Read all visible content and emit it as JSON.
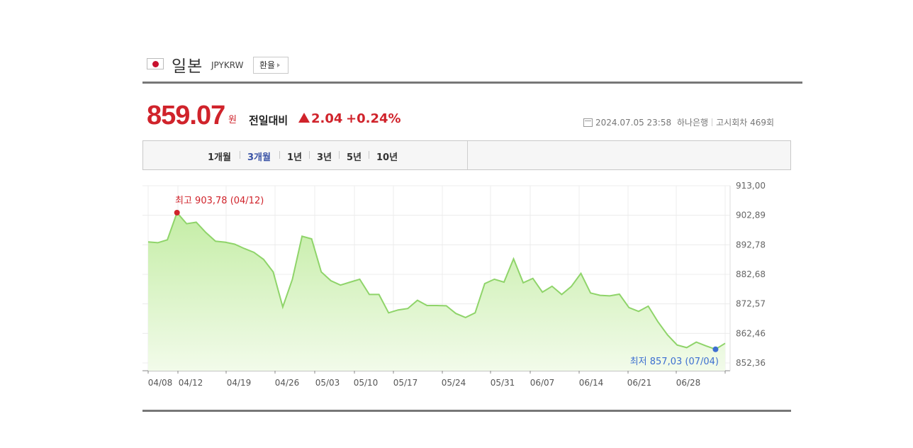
{
  "header": {
    "country": "일본",
    "code": "JPYKRW",
    "rate_button": "환율"
  },
  "quote": {
    "price": "859.07",
    "unit": "원",
    "compare_label": "전일대비",
    "change": "2.04",
    "change_pct": "+0.24%",
    "datetime": "2024.07.05 23:58",
    "bank": "하나은행",
    "notice": "고시회차 469회"
  },
  "tabs": [
    {
      "label": "1개월",
      "active": false
    },
    {
      "label": "3개월",
      "active": true
    },
    {
      "label": "1년",
      "active": false
    },
    {
      "label": "3년",
      "active": false
    },
    {
      "label": "5년",
      "active": false
    },
    {
      "label": "10년",
      "active": false
    }
  ],
  "colors": {
    "accent_red": "#d0232b",
    "active_tab": "#3b54a6",
    "line": "#8fd46a",
    "fill_top": "#c4eda5",
    "fill_bottom": "#f2fbea",
    "min_marker": "#3d6fd1"
  },
  "chart_data": {
    "type": "area",
    "x_ticks": [
      "04/08",
      "04/12",
      "04/19",
      "04/26",
      "05/03",
      "05/10",
      "05/17",
      "05/24",
      "05/31",
      "06/07",
      "06/14",
      "06/21",
      "06/28"
    ],
    "y_ticks": [
      "913,00",
      "902,89",
      "892,78",
      "882,68",
      "872,57",
      "862,46",
      "852,36"
    ],
    "ylim": [
      852.36,
      913.0
    ],
    "values": [
      893.8,
      893.5,
      894.5,
      903.78,
      900.0,
      900.5,
      897.0,
      894.0,
      893.7,
      893.0,
      891.5,
      890.2,
      887.8,
      883.5,
      871.5,
      881.0,
      895.7,
      894.8,
      883.5,
      880.5,
      879.0,
      880.0,
      881.0,
      875.8,
      875.8,
      869.5,
      870.5,
      871.0,
      873.8,
      872.0,
      872.0,
      871.9,
      869.3,
      867.9,
      869.5,
      879.5,
      881.0,
      880.0,
      888.0,
      879.8,
      881.3,
      876.6,
      878.6,
      875.8,
      878.5,
      883.0,
      876.3,
      875.5,
      875.3,
      875.9,
      871.3,
      870.0,
      871.8,
      866.5,
      862.0,
      858.5,
      857.6,
      859.5,
      858.2,
      857.03,
      859.07
    ],
    "max": {
      "label": "최고",
      "value": "903,78",
      "date": "(04/12)"
    },
    "min": {
      "label": "최저",
      "value": "857,03",
      "date": "(07/04)"
    }
  }
}
